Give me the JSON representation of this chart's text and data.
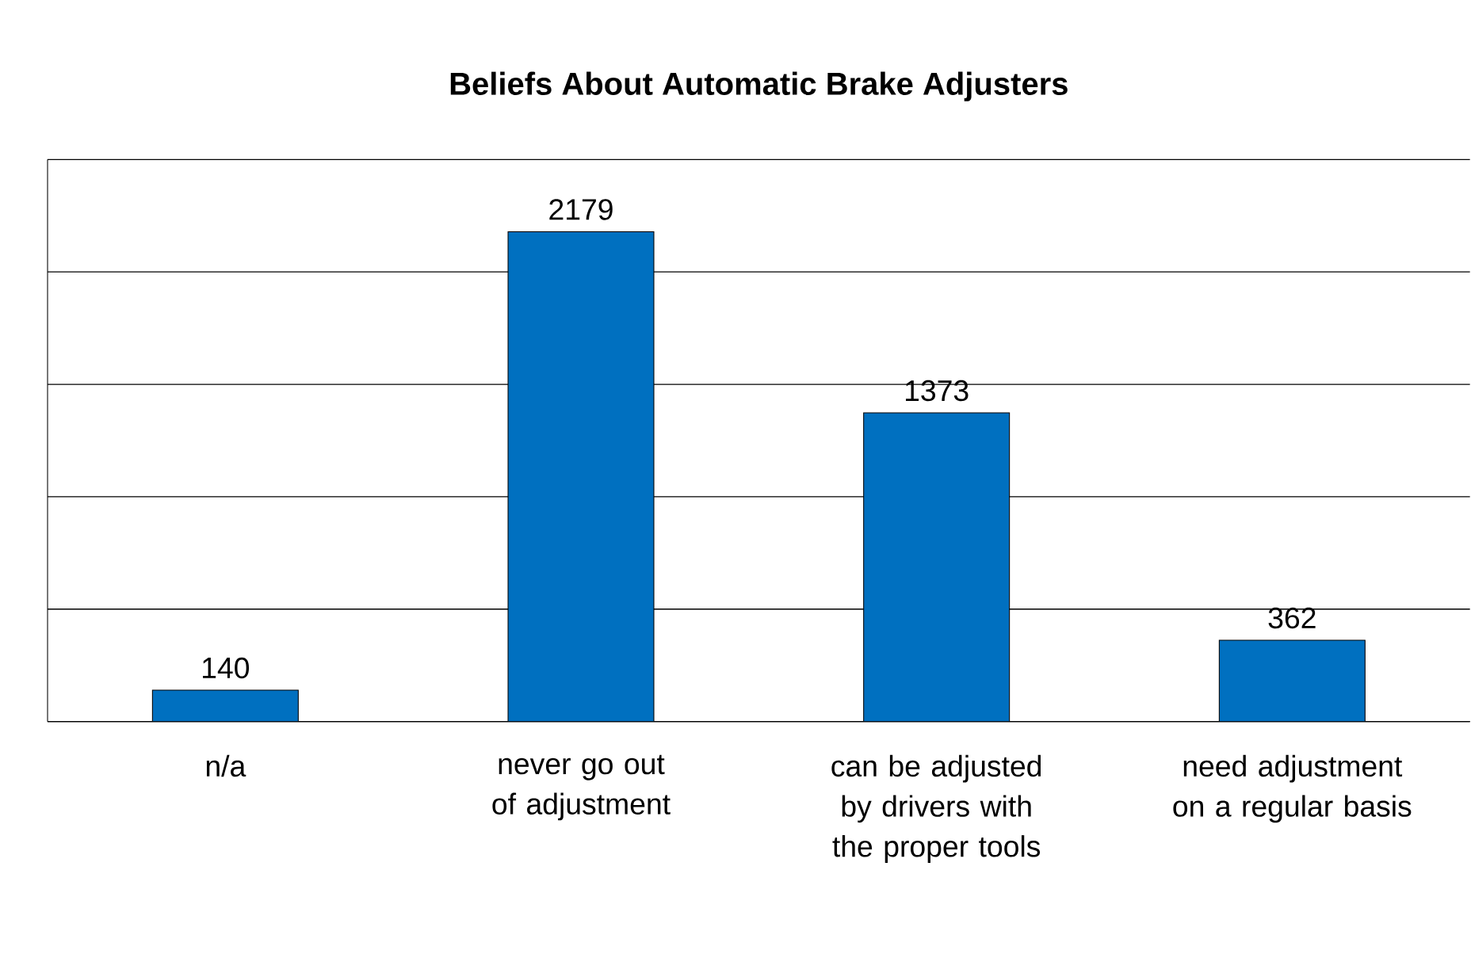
{
  "chart_data": {
    "type": "bar",
    "title": "Beliefs About Automatic Brake Adjusters",
    "categories": [
      "n/a",
      "never go out of adjustment",
      "can be adjusted by drivers with the proper tools",
      "need adjustment on a regular basis"
    ],
    "values": [
      140,
      2179,
      1373,
      362
    ],
    "color": "#0070c0",
    "ylim": [
      0,
      2500
    ],
    "yticks": [
      {
        "value": 0,
        "label": null
      },
      {
        "value": 500,
        "label": null
      },
      {
        "value": 1000,
        "label": null
      },
      {
        "value": 1500,
        "label": null
      },
      {
        "value": 2000,
        "label": null
      },
      {
        "value": 2500,
        "label": null
      }
    ],
    "grid": "y",
    "tick_labels": "x",
    "data_labels": true
  }
}
